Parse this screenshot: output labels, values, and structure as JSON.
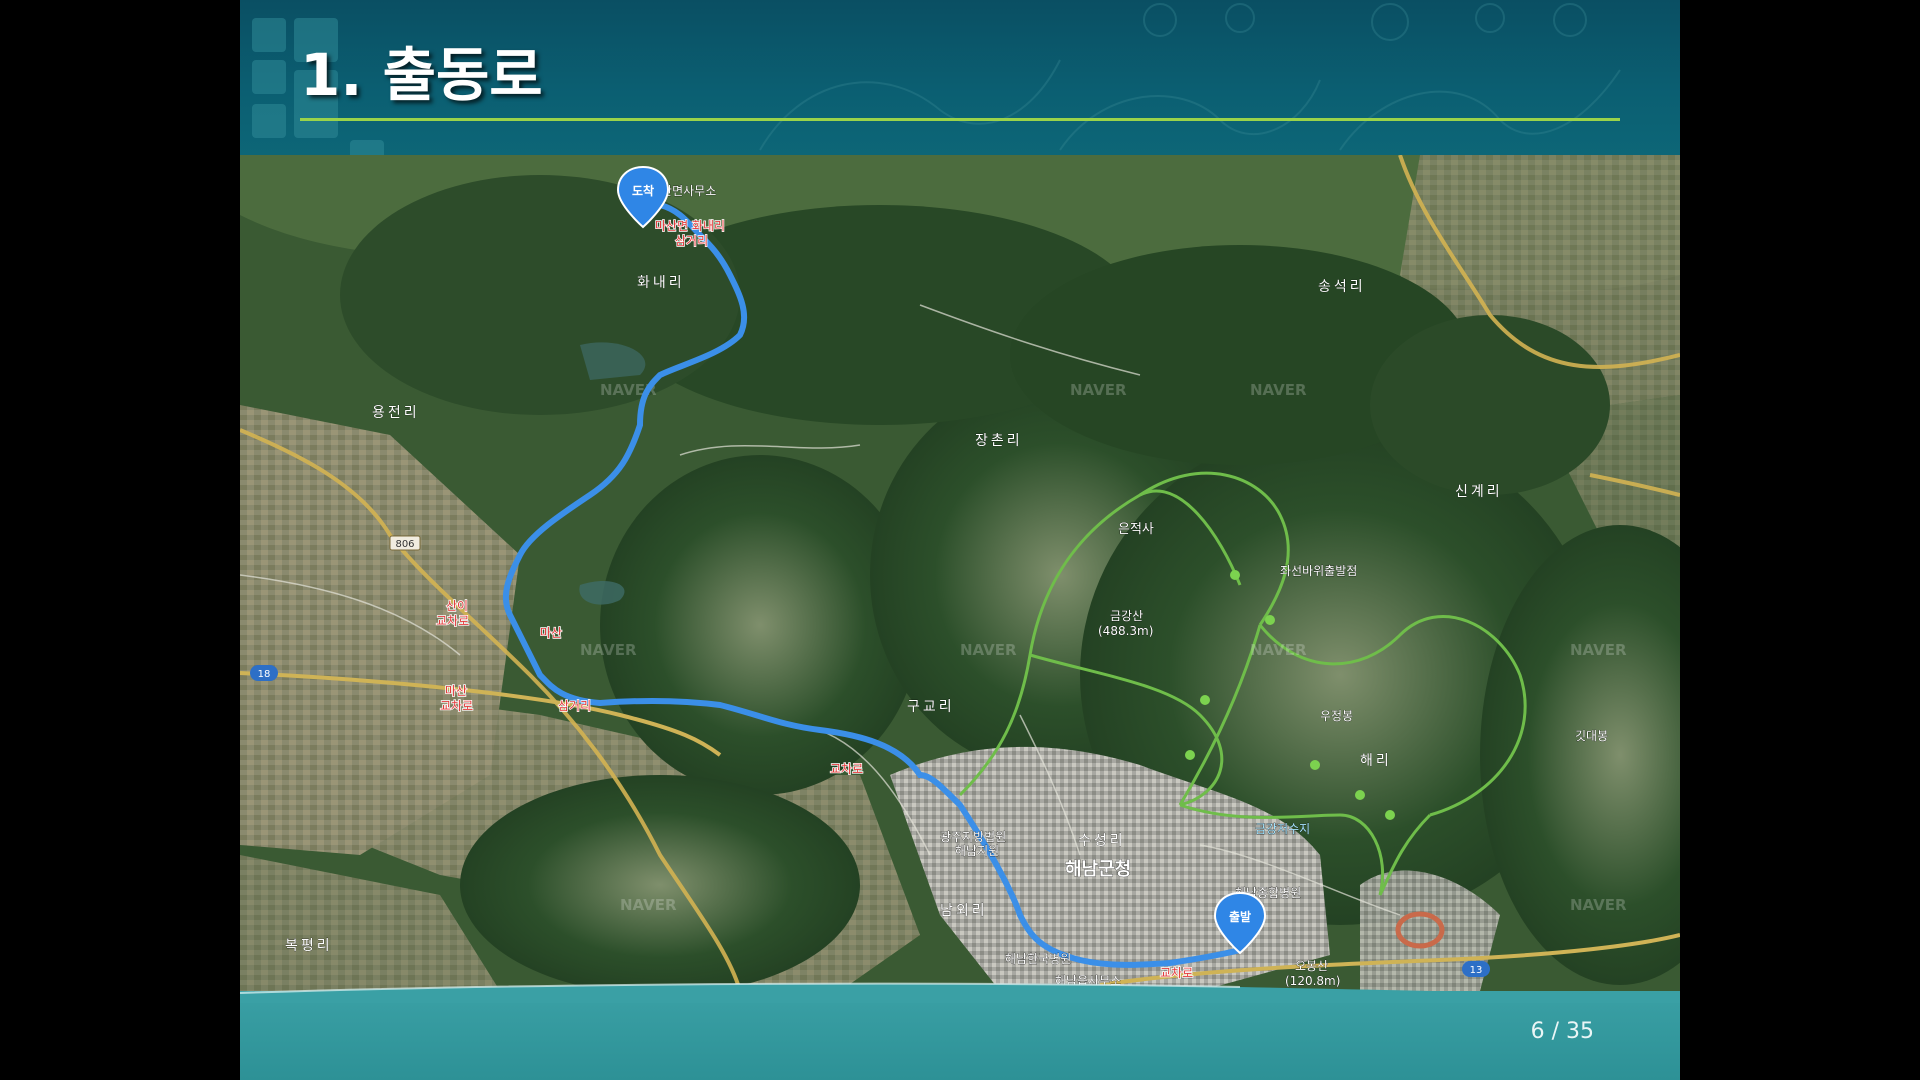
{
  "slide": {
    "title": "1. 출동로",
    "page_number": "6 / 35"
  },
  "map": {
    "route_color": "#3b8fe8",
    "markers": {
      "end_label": "도착",
      "start_label": "출발"
    },
    "places": [
      {
        "name": "화내리"
      },
      {
        "name": "송석리"
      },
      {
        "name": "용전리"
      },
      {
        "name": "장촌리"
      },
      {
        "name": "신계리"
      },
      {
        "name": "은적사"
      },
      {
        "name": "구교리"
      },
      {
        "name": "해리"
      },
      {
        "name": "수성리"
      },
      {
        "name": "해남군청"
      },
      {
        "name": "남외리"
      },
      {
        "name": "복평리"
      },
      {
        "name": "광주지방법원"
      },
      {
        "name": "해남지원"
      },
      {
        "name": "해남종합병원"
      },
      {
        "name": "해남한국병원"
      },
      {
        "name": "해남읍사무소"
      },
      {
        "name": "마산면사무소"
      },
      {
        "name": "마산면 화내리"
      },
      {
        "name": "삼거리"
      },
      {
        "name": "산이"
      },
      {
        "name": "교차로"
      },
      {
        "name": "마산"
      },
      {
        "name": "삼거리"
      },
      {
        "name": "마산"
      },
      {
        "name": "교차로"
      },
      {
        "name": "교차로"
      },
      {
        "name": "교차로"
      },
      {
        "name": "금강저수지"
      },
      {
        "name": "금강산"
      },
      {
        "name": "(488.3m)"
      },
      {
        "name": "오봉산"
      },
      {
        "name": "(120.8m)"
      },
      {
        "name": "좌선바위출발점"
      },
      {
        "name": "우정봉"
      },
      {
        "name": "깃대봉"
      }
    ],
    "road_numbers": [
      "806",
      "18",
      "13"
    ],
    "watermark": "NAVER"
  }
}
